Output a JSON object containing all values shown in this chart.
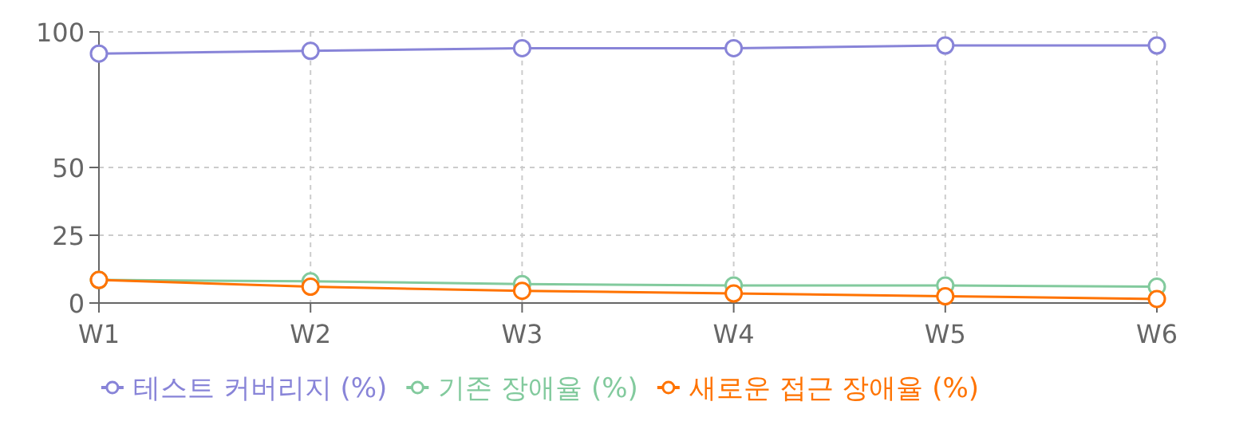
{
  "chart_data": {
    "type": "line",
    "categories": [
      "W1",
      "W2",
      "W3",
      "W4",
      "W5",
      "W6"
    ],
    "series": [
      {
        "name": "테스트 커버리지 (%)",
        "color": "#8884d8",
        "values": [
          92,
          93,
          94,
          94,
          95,
          95
        ]
      },
      {
        "name": "기존 장애율 (%)",
        "color": "#82ca9d",
        "values": [
          8.5,
          8,
          7,
          6.5,
          6.5,
          6
        ]
      },
      {
        "name": "새로운 접근 장애율 (%)",
        "color": "#ff7300",
        "values": [
          8.5,
          6,
          4.5,
          3.5,
          2.5,
          1.5
        ]
      }
    ],
    "ylim": [
      0,
      100
    ],
    "yticks": [
      0,
      25,
      50,
      100
    ],
    "grid": true,
    "legend": "bottom",
    "marker": "circle",
    "line_style": "solid"
  }
}
